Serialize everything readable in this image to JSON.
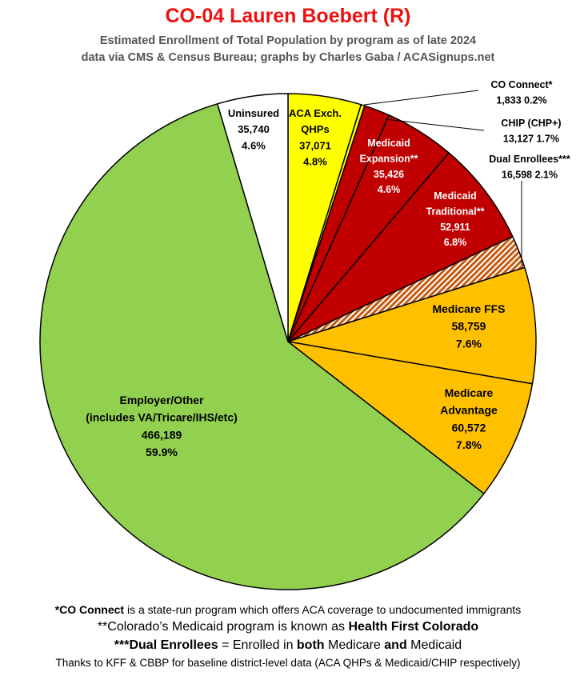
{
  "title": "CO-04 Lauren Boebert (R)",
  "subtitle_line1": "Estimated Enrollment of Total Population by program as of late 2024",
  "subtitle_line2": "data via CMS & Census Bureau; graphs by Charles Gaba / ACASignups.net",
  "footnotes": {
    "line1_bold": "*CO Connect",
    "line1_rest": " is a state-run program which offers ACA coverage to undocumented immigrants",
    "line2_a": "**Colorado’s Medicaid program is known as ",
    "line2_bold": "Health First Colorado",
    "line3_bold1": "***Dual Enrollees",
    "line3_a": " = Enrolled in ",
    "line3_bold2": "both",
    "line3_b": " Medicare ",
    "line3_bold3": "and",
    "line3_c": " Medicaid",
    "line4": "Thanks to KFF & CBBP for baseline district-level data (ACA QHPs & Medicaid/CHIP respectively)"
  },
  "chart_data": {
    "type": "pie",
    "title": "CO-04 Lauren Boebert (R)",
    "slices": [
      {
        "label": "ACA Exch. QHPs",
        "value": 37071,
        "percent": "4.8%",
        "color": "#ffff00",
        "label_lines": [
          "ACA Exch.",
          "QHPs",
          "37,071",
          "4.8%"
        ]
      },
      {
        "label": "CO Connect*",
        "value": 1833,
        "percent": "0.2%",
        "color": "#ffff00",
        "label_lines": [
          "CO Connect*",
          "1,833 0.2%"
        ]
      },
      {
        "label": "CHIP (CHP+)",
        "value": 13127,
        "percent": "1.7%",
        "color": "#c00000",
        "label_lines": [
          "CHIP (CHP+)",
          "13,127 1.7%"
        ]
      },
      {
        "label": "Medicaid Expansion**",
        "value": 35426,
        "percent": "4.6%",
        "color": "#c00000",
        "label_lines": [
          "Medicaid",
          "Expansion**",
          "35,426",
          "4.6%"
        ]
      },
      {
        "label": "Medicaid Traditional**",
        "value": 52911,
        "percent": "6.8%",
        "color": "#c00000",
        "label_lines": [
          "Medicaid",
          "Traditional**",
          "52,911",
          "6.8%"
        ]
      },
      {
        "label": "Dual Enrollees***",
        "value": 16598,
        "percent": "2.1%",
        "color": "#c55a11",
        "pattern": "hatched",
        "label_lines": [
          "Dual Enrollees***",
          "16,598 2.1%"
        ]
      },
      {
        "label": "Medicare FFS",
        "value": 58759,
        "percent": "7.6%",
        "color": "#ffc000",
        "label_lines": [
          "Medicare FFS",
          "58,759",
          "7.6%"
        ]
      },
      {
        "label": "Medicare Advantage",
        "value": 60572,
        "percent": "7.8%",
        "color": "#ffc000",
        "label_lines": [
          "Medicare",
          "Advantage",
          "60,572",
          "7.8%"
        ]
      },
      {
        "label": "Employer/Other (includes VA/Tricare/IHS/etc)",
        "value": 466189,
        "percent": "59.9%",
        "color": "#92d050",
        "label_lines": [
          "Employer/Other",
          "(includes VA/Tricare/IHS/etc)",
          "466,189",
          "59.9%"
        ]
      },
      {
        "label": "Uninsured",
        "value": 35740,
        "percent": "4.6%",
        "color": "#ffffff",
        "label_lines": [
          "Uninsured",
          "35,740",
          "4.6%"
        ]
      }
    ]
  }
}
